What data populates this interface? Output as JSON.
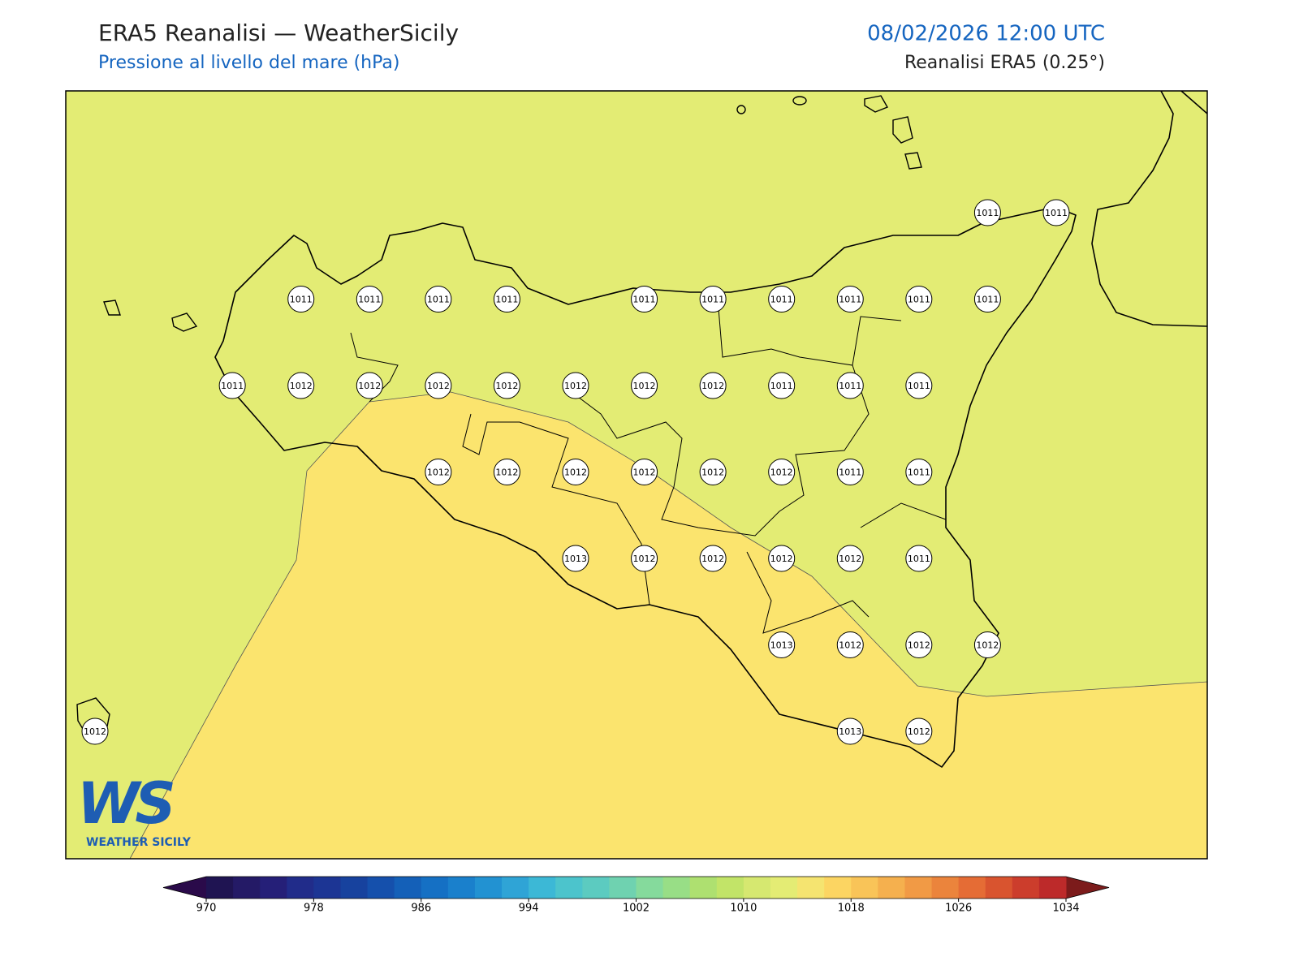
{
  "header": {
    "title": "ERA5 Reanalisi — WeatherSicily",
    "subtitle": "Pressione al livello del mare (hPa)",
    "datetime": "08/02/2026 12:00 UTC",
    "source": "Reanalisi ERA5 (0.25°)"
  },
  "map": {
    "label_grid": [
      [
        null,
        null,
        null,
        null,
        null,
        null,
        null,
        null,
        null,
        null,
        null,
        null,
        null,
        1011,
        1011
      ],
      [
        null,
        null,
        null,
        1011,
        1011,
        1011,
        1011,
        null,
        1011,
        1011,
        1011,
        1011,
        1011,
        1011,
        null
      ],
      [
        null,
        null,
        1011,
        1012,
        1012,
        1012,
        1012,
        1012,
        1012,
        1012,
        1011,
        1011,
        1011,
        null,
        null
      ],
      [
        null,
        null,
        null,
        null,
        null,
        1012,
        1012,
        1012,
        1012,
        1012,
        1012,
        1011,
        1011,
        null,
        null
      ],
      [
        null,
        null,
        null,
        null,
        null,
        null,
        null,
        1013,
        1012,
        1012,
        1012,
        1012,
        1011,
        null,
        null
      ],
      [
        null,
        null,
        null,
        null,
        null,
        null,
        null,
        null,
        null,
        null,
        1013,
        1012,
        1012,
        1012,
        null
      ],
      [
        1012,
        null,
        null,
        null,
        null,
        null,
        null,
        null,
        null,
        null,
        null,
        1013,
        1012,
        null,
        null
      ]
    ]
  },
  "colorbar": {
    "lim": [
      970,
      1034
    ],
    "ticks": [
      970,
      978,
      986,
      994,
      1002,
      1010,
      1018,
      1026,
      1034
    ],
    "under": "#2a0a4a",
    "over": "#7c1b1b",
    "colors": [
      "#1f1452",
      "#241a66",
      "#251f78",
      "#212c8a",
      "#1c3594",
      "#17429e",
      "#1550ac",
      "#1460b8",
      "#1570c4",
      "#1a80cc",
      "#2292d2",
      "#2fa4d6",
      "#3cb8d6",
      "#4cc4cc",
      "#5ccbc0",
      "#6fd2b0",
      "#85da9c",
      "#98de86",
      "#aee070",
      "#c2e468",
      "#d6e870",
      "#e4ec74",
      "#f5e470",
      "#fcd562",
      "#f9c458",
      "#f5b04e",
      "#f19a45",
      "#eb843c",
      "#e56c35",
      "#d9542f",
      "#cc3d2c",
      "#bd2a2a"
    ]
  },
  "logo": {
    "letters": "WS",
    "text": "WEATHER SICILY"
  }
}
